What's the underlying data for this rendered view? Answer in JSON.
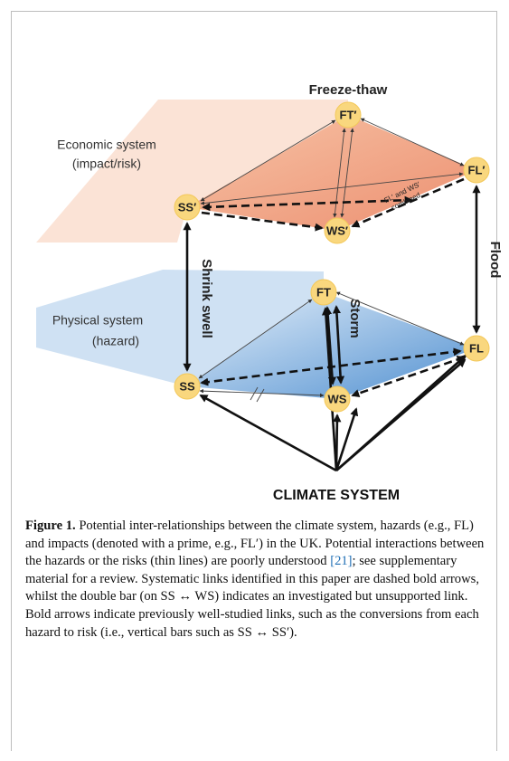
{
  "figure": {
    "nodes": [
      {
        "label": "FT′"
      },
      {
        "label": "FL′"
      },
      {
        "label": "SS′"
      },
      {
        "label": "WS′"
      },
      {
        "label": "FT"
      },
      {
        "label": "FL"
      },
      {
        "label": "SS"
      },
      {
        "label": "WS"
      }
    ],
    "economic_system": [
      "Economic system",
      "(impact/risk)"
    ],
    "physical_system": [
      "Physical system",
      "(hazard)"
    ],
    "hazards": {
      "freeze_thaw": "Freeze-thaw",
      "flood": "Flood",
      "storm": "Storm",
      "shrink_swell": "Shrink swell"
    },
    "combined_note": [
      "FL′ and WS′",
      "combined"
    ],
    "climate_system": "CLIMATE SYSTEM"
  },
  "caption": {
    "label": "Figure 1.",
    "text_before_ref": " Potential inter-relationships between the climate system, hazards (e.g., FL) and impacts (denoted with a prime, e.g., FL′) in the UK. Potential interactions between the hazards or the risks (thin lines) are poorly understood ",
    "ref": "[21]",
    "text_after_ref": "; see supplementary material for a review. Systematic links identified in this paper are dashed bold arrows, whilst the double bar (on SS ↔ WS) indicates an investigated but unsupported link. Bold arrows indicate previously well-studied links, such as the conversions from each hazard to risk (i.e., vertical bars such as SS ↔ SS′)."
  }
}
